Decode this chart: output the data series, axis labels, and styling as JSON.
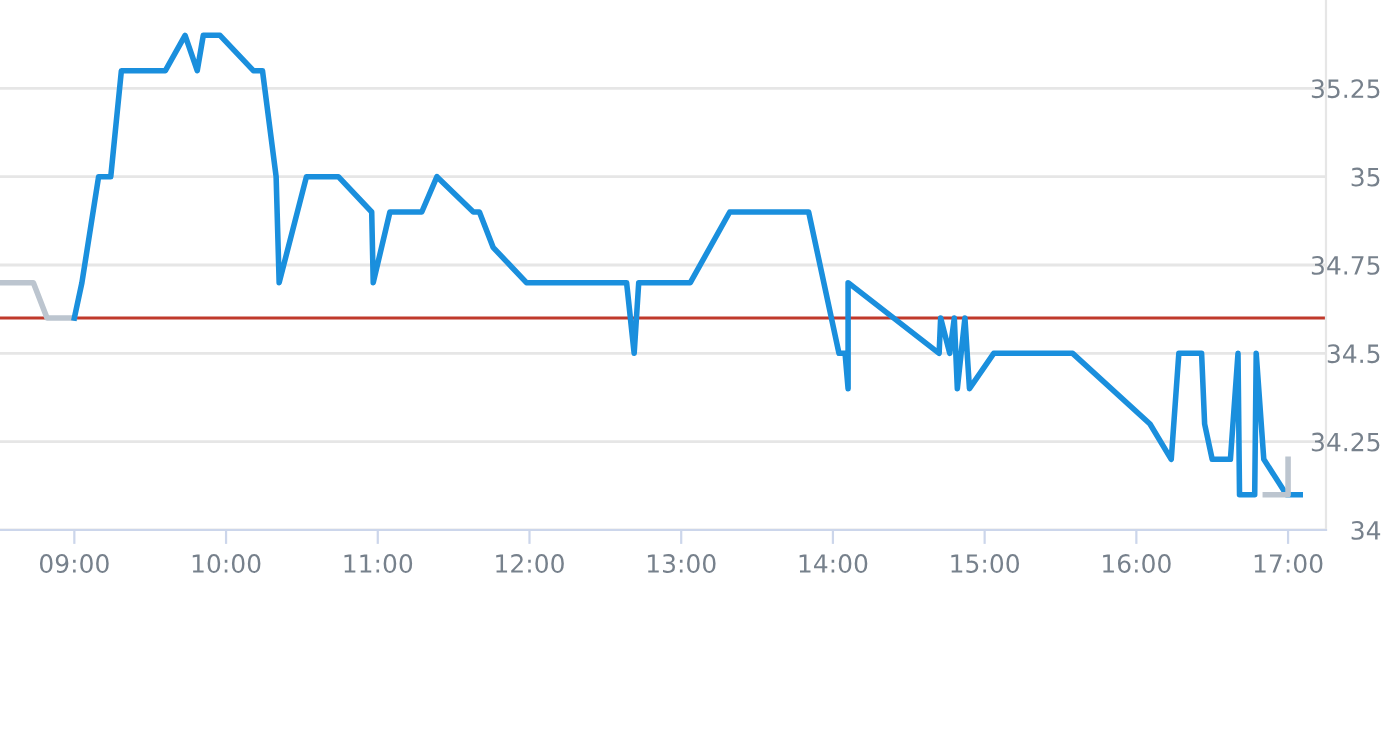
{
  "chart_data": {
    "type": "line",
    "series": [
      {
        "color": "#bcc5cf",
        "x": [
          8.51,
          8.73,
          8.82,
          9.0
        ],
        "values": [
          34.7,
          34.7,
          34.6,
          34.6
        ]
      },
      {
        "color": "#1a8fdd",
        "x": [
          9.0,
          9.05,
          9.16,
          9.24,
          9.31,
          9.6,
          9.73,
          9.81,
          9.85,
          9.96,
          10.18,
          10.24,
          10.33,
          10.35,
          10.53,
          10.74,
          10.96,
          10.97,
          11.08,
          11.29,
          11.39,
          11.63,
          11.67,
          11.76,
          11.98,
          12.64,
          12.69,
          12.72,
          13.06,
          13.32,
          13.84,
          14.04,
          14.08,
          14.1,
          14.1,
          14.7,
          14.71,
          14.77,
          14.8,
          14.82,
          14.87,
          14.9,
          15.06,
          15.58,
          16.09,
          16.23,
          16.28,
          16.43,
          16.45,
          16.5,
          16.62,
          16.67,
          16.68,
          16.78,
          16.79,
          16.84,
          16.99,
          17.08
        ],
        "values": [
          34.6,
          34.7,
          35.0,
          35.0,
          35.3,
          35.3,
          35.4,
          35.3,
          35.4,
          35.4,
          35.3,
          35.3,
          35.0,
          34.7,
          35.0,
          35.0,
          34.9,
          34.7,
          34.9,
          34.9,
          35.0,
          34.9,
          34.9,
          34.8,
          34.7,
          34.7,
          34.5,
          34.7,
          34.7,
          34.9,
          34.9,
          34.5,
          34.5,
          34.4,
          34.7,
          34.5,
          34.6,
          34.5,
          34.6,
          34.4,
          34.6,
          34.4,
          34.5,
          34.5,
          34.3,
          34.2,
          34.5,
          34.5,
          34.3,
          34.2,
          34.2,
          34.5,
          34.1,
          34.1,
          34.5,
          34.2,
          34.1,
          34.1
        ]
      },
      {
        "color": "#bcc5cf",
        "x": [
          16.85,
          17.0,
          17.0
        ],
        "values": [
          34.1,
          34.1,
          34.2
        ]
      }
    ],
    "xlim": [
      8.51,
      17.25
    ],
    "xticks": [
      {
        "value": 9,
        "label": "09:00"
      },
      {
        "value": 10,
        "label": "10:00"
      },
      {
        "value": 11,
        "label": "11:00"
      },
      {
        "value": 12,
        "label": "12:00"
      },
      {
        "value": 13,
        "label": "13:00"
      },
      {
        "value": 14,
        "label": "14:00"
      },
      {
        "value": 15,
        "label": "15:00"
      },
      {
        "value": 16,
        "label": "16:00"
      },
      {
        "value": 17,
        "label": "17:00"
      }
    ],
    "ylim": [
      34,
      35.5
    ],
    "yticks": [
      34,
      34.25,
      34.5,
      34.75,
      35,
      35.25
    ],
    "ref_lines": [
      {
        "axis": "y",
        "value": 34.6,
        "color": "#c0392b"
      }
    ],
    "grid": "y",
    "legend": false,
    "marker": "none",
    "line_style": "solid"
  }
}
